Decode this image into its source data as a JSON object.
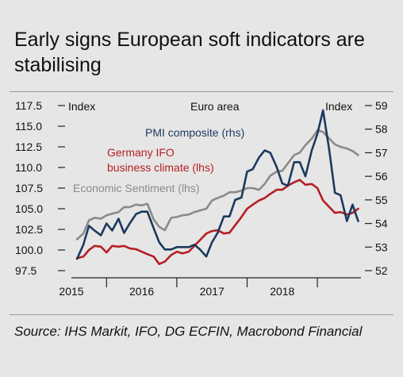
{
  "title": "Early signs European soft indicators are stabilising",
  "source": "Source: IHS Markit, IFO, DG ECFIN, Macrobond Financial",
  "chart_data": {
    "type": "line",
    "region_label": "Euro area",
    "left_axis_label": "Index",
    "right_axis_label": "Index",
    "left_ylim": [
      97.5,
      117.5
    ],
    "right_ylim": [
      52,
      59
    ],
    "left_ticks": [
      "117.5",
      "115.0",
      "112.5",
      "110.0",
      "107.5",
      "105.0",
      "102.5",
      "100.0",
      "97.5"
    ],
    "right_ticks": [
      "59",
      "58",
      "57",
      "56",
      "55",
      "54",
      "53",
      "52"
    ],
    "x_labels": [
      "2015",
      "2016",
      "2017",
      "2018"
    ],
    "x_start": 2014.5,
    "x_end": 2018.62,
    "colors": {
      "pmi": "#1b3a5c",
      "ifo": "#b51f24",
      "esi": "#8a8a8a"
    },
    "series": [
      {
        "name": "PMI composite (rhs)",
        "axis": "right",
        "x": [
          2014.58,
          2014.67,
          2014.75,
          2014.83,
          2014.92,
          2015.0,
          2015.08,
          2015.17,
          2015.25,
          2015.33,
          2015.42,
          2015.5,
          2015.58,
          2015.67,
          2015.75,
          2015.83,
          2015.92,
          2016.0,
          2016.08,
          2016.17,
          2016.25,
          2016.33,
          2016.42,
          2016.5,
          2016.58,
          2016.67,
          2016.75,
          2016.83,
          2016.92,
          2017.0,
          2017.08,
          2017.17,
          2017.25,
          2017.33,
          2017.42,
          2017.5,
          2017.58,
          2017.67,
          2017.75,
          2017.83,
          2017.92,
          2018.0,
          2018.08,
          2018.17,
          2018.25,
          2018.33,
          2018.42,
          2018.5,
          2018.58
        ],
        "values": [
          52.5,
          53.1,
          53.9,
          53.7,
          53.5,
          54.0,
          53.7,
          54.2,
          53.6,
          54.0,
          54.4,
          54.5,
          54.5,
          53.8,
          53.2,
          52.9,
          52.9,
          53.0,
          53.0,
          53.0,
          53.1,
          52.9,
          52.6,
          53.2,
          53.6,
          54.3,
          54.3,
          55.0,
          55.1,
          56.2,
          56.3,
          56.8,
          57.1,
          57.0,
          56.4,
          55.7,
          55.6,
          56.6,
          56.6,
          56.0,
          57.1,
          57.8,
          58.8,
          57.1,
          55.3,
          55.2,
          54.1,
          54.8,
          54.1
        ]
      },
      {
        "name": "Germany IFO business climate (lhs)",
        "axis": "left",
        "x": [
          2014.58,
          2014.67,
          2014.75,
          2014.83,
          2014.92,
          2015.0,
          2015.08,
          2015.17,
          2015.25,
          2015.33,
          2015.42,
          2015.5,
          2015.58,
          2015.67,
          2015.75,
          2015.83,
          2015.92,
          2016.0,
          2016.08,
          2016.17,
          2016.25,
          2016.33,
          2016.42,
          2016.5,
          2016.58,
          2016.67,
          2016.75,
          2016.83,
          2016.92,
          2017.0,
          2017.08,
          2017.17,
          2017.25,
          2017.33,
          2017.42,
          2017.5,
          2017.58,
          2017.67,
          2017.75,
          2017.83,
          2017.92,
          2018.0,
          2018.08,
          2018.17,
          2018.25,
          2018.33,
          2018.42,
          2018.5,
          2018.58
        ],
        "values": [
          99.0,
          99.2,
          100.0,
          100.5,
          100.4,
          99.7,
          100.5,
          100.4,
          100.5,
          100.2,
          100.1,
          99.8,
          99.5,
          99.2,
          98.3,
          98.6,
          99.4,
          99.8,
          99.6,
          99.8,
          100.5,
          101.2,
          102.0,
          102.3,
          102.4,
          102.0,
          102.1,
          103.0,
          104.0,
          105.0,
          105.5,
          106.0,
          106.3,
          106.8,
          107.3,
          107.3,
          107.8,
          108.2,
          108.5,
          107.9,
          108.0,
          107.5,
          106.0,
          105.2,
          104.5,
          104.6,
          104.3,
          104.5,
          105.0
        ]
      },
      {
        "name": "Economic Sentiment (lhs)",
        "axis": "left",
        "x": [
          2014.58,
          2014.67,
          2014.75,
          2014.83,
          2014.92,
          2015.0,
          2015.08,
          2015.17,
          2015.25,
          2015.33,
          2015.42,
          2015.5,
          2015.58,
          2015.67,
          2015.75,
          2015.83,
          2015.92,
          2016.0,
          2016.08,
          2016.17,
          2016.25,
          2016.33,
          2016.42,
          2016.5,
          2016.58,
          2016.67,
          2016.75,
          2016.83,
          2016.92,
          2017.0,
          2017.08,
          2017.17,
          2017.25,
          2017.33,
          2017.42,
          2017.5,
          2017.58,
          2017.67,
          2017.75,
          2017.83,
          2017.92,
          2018.0,
          2018.08,
          2018.17,
          2018.25,
          2018.33,
          2018.42,
          2018.5,
          2018.58
        ],
        "values": [
          101.3,
          102.0,
          103.6,
          103.9,
          103.8,
          104.2,
          104.4,
          104.6,
          105.2,
          105.2,
          105.5,
          105.4,
          105.6,
          103.7,
          102.8,
          102.4,
          103.9,
          104.0,
          104.2,
          104.3,
          104.6,
          104.8,
          105.0,
          106.0,
          106.3,
          106.6,
          107.0,
          107.0,
          107.2,
          107.5,
          107.5,
          107.3,
          108.0,
          109.0,
          109.5,
          109.6,
          110.5,
          111.5,
          111.8,
          112.7,
          113.5,
          114.5,
          114.3,
          113.5,
          112.8,
          112.5,
          112.3,
          112.0,
          111.5
        ]
      }
    ]
  }
}
